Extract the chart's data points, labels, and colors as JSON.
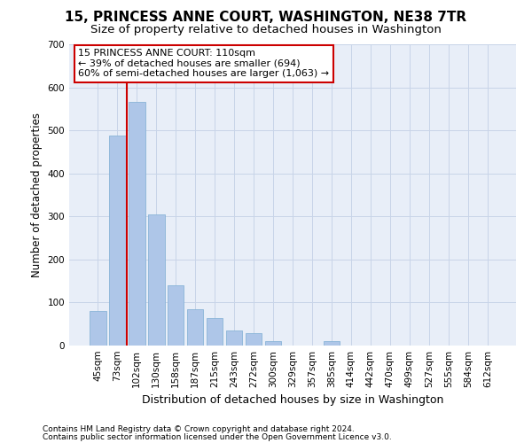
{
  "title": "15, PRINCESS ANNE COURT, WASHINGTON, NE38 7TR",
  "subtitle": "Size of property relative to detached houses in Washington",
  "xlabel": "Distribution of detached houses by size in Washington",
  "ylabel": "Number of detached properties",
  "footnote1": "Contains HM Land Registry data © Crown copyright and database right 2024.",
  "footnote2": "Contains public sector information licensed under the Open Government Licence v3.0.",
  "annotation_line1": "15 PRINCESS ANNE COURT: 110sqm",
  "annotation_line2": "← 39% of detached houses are smaller (694)",
  "annotation_line3": "60% of semi-detached houses are larger (1,063) →",
  "bar_color": "#aec6e8",
  "bar_edge_color": "#8ab4d8",
  "vline_color": "#cc0000",
  "vline_x": 1.5,
  "categories": [
    "45sqm",
    "73sqm",
    "102sqm",
    "130sqm",
    "158sqm",
    "187sqm",
    "215sqm",
    "243sqm",
    "272sqm",
    "300sqm",
    "329sqm",
    "357sqm",
    "385sqm",
    "414sqm",
    "442sqm",
    "470sqm",
    "499sqm",
    "527sqm",
    "555sqm",
    "584sqm",
    "612sqm"
  ],
  "values": [
    80,
    487,
    566,
    304,
    140,
    85,
    63,
    35,
    28,
    10,
    0,
    0,
    10,
    0,
    0,
    0,
    0,
    0,
    0,
    0,
    0
  ],
  "ylim": [
    0,
    700
  ],
  "yticks": [
    0,
    100,
    200,
    300,
    400,
    500,
    600,
    700
  ],
  "grid_color": "#c8d4e8",
  "bg_color": "#e8eef8",
  "title_fontsize": 11,
  "subtitle_fontsize": 9.5,
  "xlabel_fontsize": 9,
  "ylabel_fontsize": 8.5,
  "tick_fontsize": 7.5,
  "annotation_fontsize": 8,
  "footnote_fontsize": 6.5,
  "annotation_box_color": "#ffffff",
  "annotation_box_edge": "#cc0000"
}
